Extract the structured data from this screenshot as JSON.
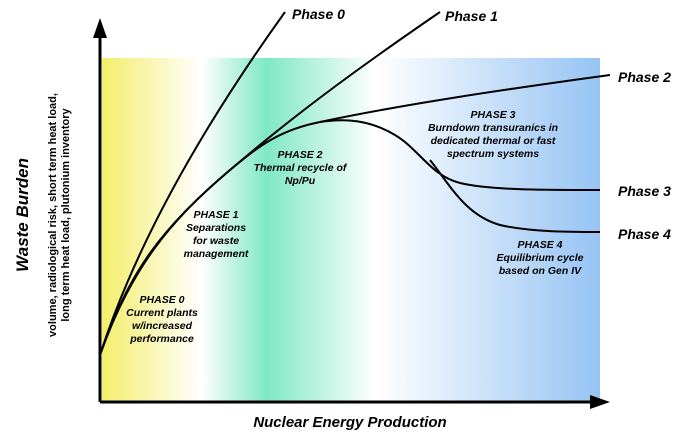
{
  "axes": {
    "y_label": "Waste Burden",
    "y_sublabel": [
      "volume, radiological risk, short term heat load,",
      "long term heat load, plutonium inventory"
    ],
    "x_label": "Nuclear Energy Production"
  },
  "curves": [
    "Phase 0",
    "Phase 1",
    "Phase 2",
    "Phase 3",
    "Phase 4"
  ],
  "phases": [
    {
      "heading": "PHASE 0",
      "lines": [
        "Current plants",
        "w/increased",
        "performance"
      ]
    },
    {
      "heading": "PHASE 1",
      "lines": [
        "Separations",
        "for waste",
        "management"
      ]
    },
    {
      "heading": "PHASE 2",
      "lines": [
        "Thermal recycle of",
        "Np/Pu"
      ]
    },
    {
      "heading": "PHASE 3",
      "lines": [
        "Burndown transuranics in",
        "dedicated thermal or fast",
        "spectrum systems"
      ]
    },
    {
      "heading": "PHASE 4",
      "lines": [
        "Equilibrium cycle",
        "based on Gen IV"
      ]
    }
  ]
}
